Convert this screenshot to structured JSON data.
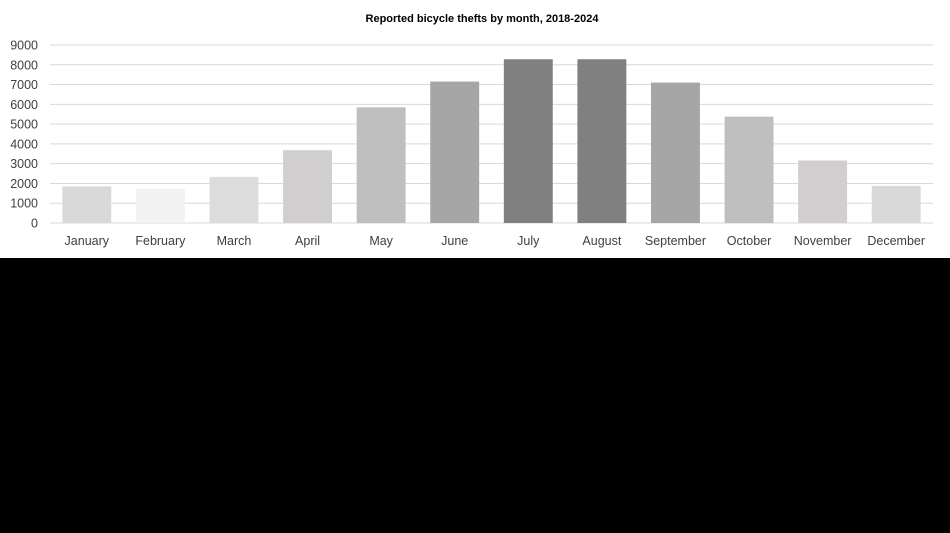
{
  "chart_data": {
    "type": "bar",
    "title": "Reported bicycle thefts by month, 2018-2024",
    "xlabel": "",
    "ylabel": "",
    "categories": [
      "January",
      "February",
      "March",
      "April",
      "May",
      "June",
      "July",
      "August",
      "September",
      "October",
      "November",
      "December"
    ],
    "series": [
      {
        "values": [
          1850,
          1720,
          2330,
          3680,
          5850,
          7150,
          8280,
          8280,
          7100,
          5380,
          3160,
          1880
        ],
        "colors": [
          "#d9d9d9",
          "#f2f2f2",
          "#dcdcdc",
          "#d0cece",
          "#bfbfbf",
          "#a6a6a6",
          "#808080",
          "#808080",
          "#a6a6a6",
          "#bfbfbf",
          "#d0cece",
          "#d9d9d9"
        ]
      }
    ],
    "ylim": [
      0,
      9000
    ],
    "yticks": [
      "0",
      "1000",
      "2000",
      "3000",
      "4000",
      "5000",
      "6000",
      "7000",
      "8000",
      "9000"
    ],
    "grid": true,
    "legend": "none"
  }
}
